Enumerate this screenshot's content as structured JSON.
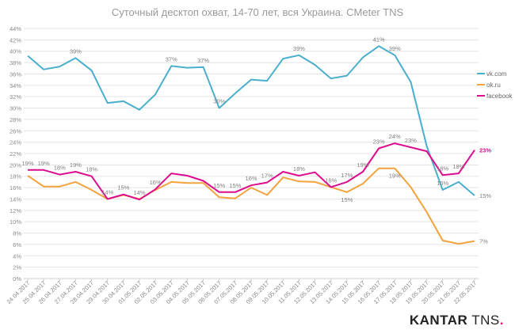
{
  "chart_data": {
    "type": "line",
    "title": "Суточный десктоп охват, 14-70 лет, вся Украина. CMeter TNS",
    "xlabel": "",
    "ylabel": "",
    "ylim": [
      0,
      44
    ],
    "y_ticks": [
      "0%",
      "2%",
      "4%",
      "6%",
      "8%",
      "10%",
      "12%",
      "14%",
      "16%",
      "18%",
      "20%",
      "22%",
      "24%",
      "26%",
      "28%",
      "30%",
      "32%",
      "34%",
      "36%",
      "38%",
      "40%",
      "42%",
      "44%"
    ],
    "grid": true,
    "legend_position": "right",
    "categories": [
      "24.04.2017",
      "25.04.2017",
      "26.04.2017",
      "27.04.2017",
      "28.04.2017",
      "29.04.2017",
      "30.04.2017",
      "01.05.2017",
      "02.05.2017",
      "03.05.2017",
      "04.05.2017",
      "05.05.2017",
      "06.05.2017",
      "07.05.2017",
      "08.05.2017",
      "09.05.2017",
      "10.05.2017",
      "11.05.2017",
      "12.05.2017",
      "13.05.2017",
      "14.05.2017",
      "15.05.2017",
      "16.05.2017",
      "17.05.2017",
      "18.05.2017",
      "19.05.2017",
      "20.05.2017",
      "21.05.2017",
      "22.05.2017"
    ],
    "series": [
      {
        "name": "vk.com",
        "color": "#4aaecd",
        "values": [
          39.2,
          36.8,
          37.3,
          38.8,
          36.6,
          30.9,
          31.2,
          29.7,
          32.4,
          37.4,
          37.1,
          37.2,
          30.0,
          32.6,
          35.0,
          34.8,
          38.7,
          39.3,
          37.6,
          35.2,
          35.7,
          38.9,
          40.9,
          39.3,
          34.6,
          23.3,
          15.6,
          17.0,
          14.6
        ],
        "labels": {
          "3": "39%",
          "9": "37%",
          "11": "37%",
          "12": "30%",
          "17": "39%",
          "22": "41%",
          "23": "39%",
          "26": "16%",
          "28": "15%"
        }
      },
      {
        "name": "ok.ru",
        "color": "#f4a23c",
        "values": [
          18.1,
          16.2,
          16.2,
          17.0,
          15.6,
          14.0,
          14.7,
          14.0,
          15.6,
          17.0,
          16.8,
          16.8,
          14.3,
          14.1,
          16.0,
          14.7,
          17.8,
          17.1,
          17.0,
          16.1,
          15.2,
          16.7,
          19.4,
          19.4,
          16.1,
          11.7,
          6.7,
          6.1,
          6.6
        ],
        "labels": {
          "20": "15%",
          "23": "19%",
          "28": "7%"
        }
      },
      {
        "name": "facebook",
        "color": "#dc0c8e",
        "values": [
          19.1,
          19.1,
          18.3,
          18.8,
          18.0,
          14.0,
          14.8,
          13.9,
          15.7,
          18.5,
          18.1,
          17.2,
          15.2,
          15.2,
          16.4,
          16.9,
          18.8,
          18.1,
          18.7,
          16.1,
          17.0,
          18.8,
          22.9,
          23.8,
          23.1,
          22.4,
          18.2,
          18.5,
          22.6
        ],
        "labels": {
          "0": "19%",
          "1": "19%",
          "2": "18%",
          "3": "19%",
          "4": "18%",
          "5": "14%",
          "6": "15%",
          "7": "14%",
          "8": "16%",
          "12": "15%",
          "13": "15%",
          "14": "16%",
          "15": "17%",
          "17": "18%",
          "19": "16%",
          "20": "17%",
          "21": "19%",
          "22": "23%",
          "23": "24%",
          "24": "23%",
          "26": "18%",
          "27": "18%",
          "28": "23%"
        }
      }
    ]
  },
  "brand": {
    "kantar": "KANTAR",
    "tns": "TNS",
    "dot": "."
  }
}
